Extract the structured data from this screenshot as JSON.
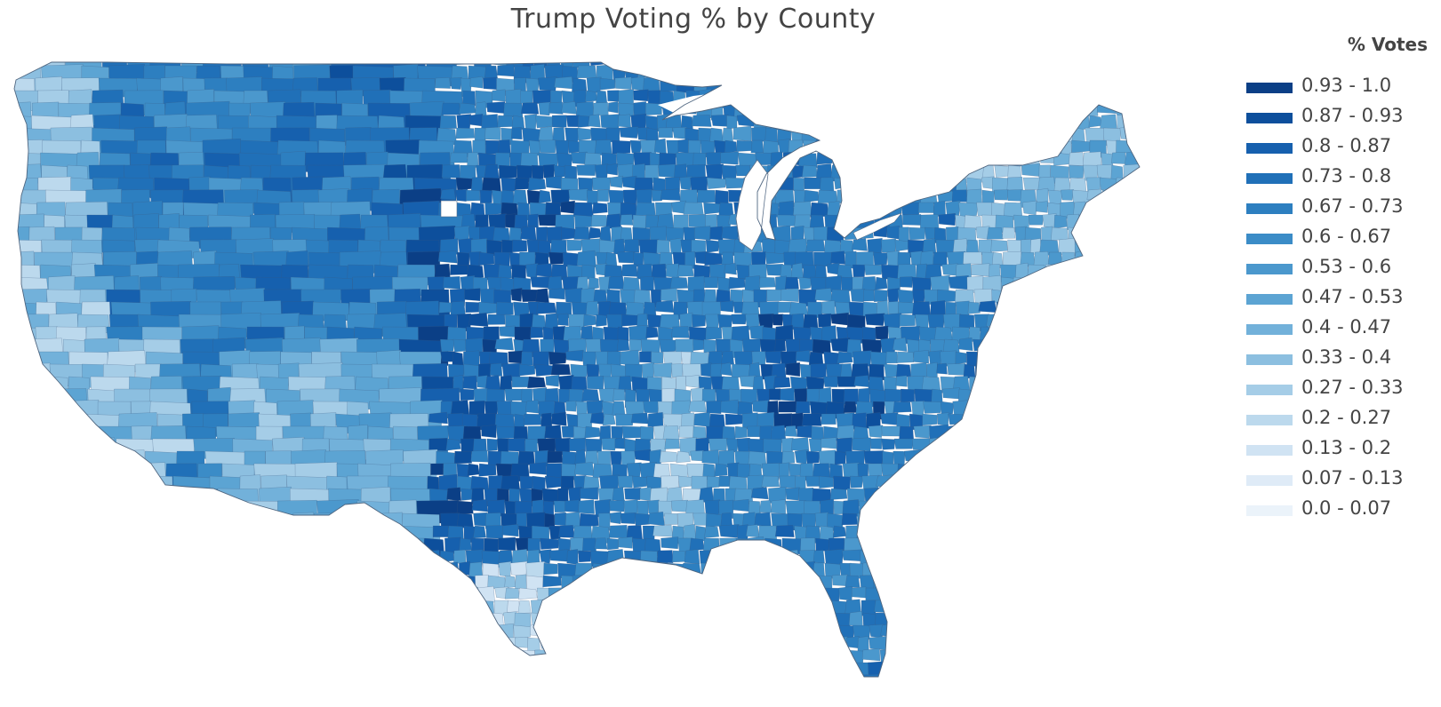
{
  "title": "Trump Voting % by County",
  "legend": {
    "title": "% Votes",
    "items": [
      {
        "label": "0.93 - 1.0",
        "color": "#0b3f86"
      },
      {
        "label": "0.87 - 0.93",
        "color": "#0d4f9c"
      },
      {
        "label": "0.8 - 0.87",
        "color": "#1660ae"
      },
      {
        "label": "0.73 - 0.8",
        "color": "#2070b8"
      },
      {
        "label": "0.67 - 0.73",
        "color": "#2d7fc0"
      },
      {
        "label": "0.6 - 0.67",
        "color": "#3b8cc7"
      },
      {
        "label": "0.53 - 0.6",
        "color": "#4b98cd"
      },
      {
        "label": "0.47 - 0.53",
        "color": "#5ca4d3"
      },
      {
        "label": "0.4 - 0.47",
        "color": "#72b1da"
      },
      {
        "label": "0.33 - 0.4",
        "color": "#8cbfe0"
      },
      {
        "label": "0.27 - 0.33",
        "color": "#a5cde7"
      },
      {
        "label": "0.2 - 0.27",
        "color": "#bcd9ed"
      },
      {
        "label": "0.13 - 0.2",
        "color": "#d0e3f3"
      },
      {
        "label": "0.07 - 0.13",
        "color": "#dfebf7"
      },
      {
        "label": "0.0 - 0.07",
        "color": "#ebf3fa"
      }
    ]
  }
}
